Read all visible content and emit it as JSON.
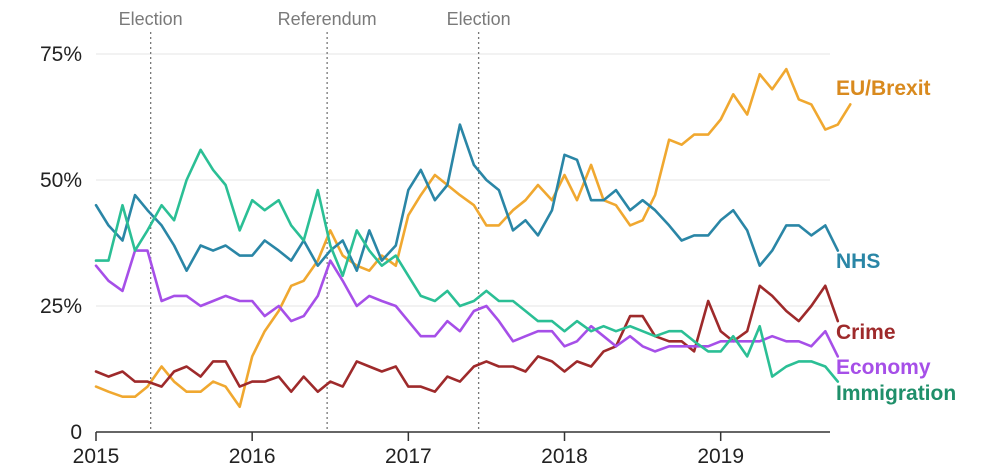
{
  "chart_data": {
    "type": "line",
    "title": "",
    "xlabel": "",
    "ylabel": "",
    "xlim": [
      2015.0,
      2019.7
    ],
    "ylim": [
      0,
      75
    ],
    "grid": true,
    "legend": "inline labels at the right end of each line",
    "y_ticks": [
      {
        "value": 0,
        "label": "0"
      },
      {
        "value": 25,
        "label": "25%"
      },
      {
        "value": 50,
        "label": "50%"
      },
      {
        "value": 75,
        "label": "75%"
      }
    ],
    "x_ticks": [
      {
        "value": 2015,
        "label": "2015"
      },
      {
        "value": 2016,
        "label": "2016"
      },
      {
        "value": 2017,
        "label": "2017"
      },
      {
        "value": 2018,
        "label": "2018"
      },
      {
        "value": 2019,
        "label": "2019"
      }
    ],
    "events": [
      {
        "x": 2015.35,
        "label": "Election"
      },
      {
        "x": 2016.48,
        "label": "Referendum"
      },
      {
        "x": 2017.45,
        "label": "Election"
      }
    ],
    "series": [
      {
        "name": "EU/Brexit",
        "color": "#f0a830",
        "label_color": "#d98a1e",
        "points": [
          [
            2015.0,
            9
          ],
          [
            2015.08,
            8
          ],
          [
            2015.17,
            7
          ],
          [
            2015.25,
            7
          ],
          [
            2015.33,
            9
          ],
          [
            2015.42,
            13
          ],
          [
            2015.5,
            10
          ],
          [
            2015.58,
            8
          ],
          [
            2015.67,
            8
          ],
          [
            2015.75,
            10
          ],
          [
            2015.83,
            9
          ],
          [
            2015.92,
            5
          ],
          [
            2016.0,
            15
          ],
          [
            2016.08,
            20
          ],
          [
            2016.17,
            24
          ],
          [
            2016.25,
            29
          ],
          [
            2016.33,
            30
          ],
          [
            2016.42,
            34
          ],
          [
            2016.5,
            40
          ],
          [
            2016.58,
            35
          ],
          [
            2016.67,
            33
          ],
          [
            2016.75,
            32
          ],
          [
            2016.83,
            35
          ],
          [
            2016.92,
            33
          ],
          [
            2017.0,
            43
          ],
          [
            2017.08,
            47
          ],
          [
            2017.17,
            51
          ],
          [
            2017.25,
            49
          ],
          [
            2017.33,
            47
          ],
          [
            2017.42,
            45
          ],
          [
            2017.5,
            41
          ],
          [
            2017.58,
            41
          ],
          [
            2017.67,
            44
          ],
          [
            2017.75,
            46
          ],
          [
            2017.83,
            49
          ],
          [
            2017.92,
            46
          ],
          [
            2018.0,
            51
          ],
          [
            2018.08,
            46
          ],
          [
            2018.17,
            53
          ],
          [
            2018.25,
            46
          ],
          [
            2018.33,
            45
          ],
          [
            2018.42,
            41
          ],
          [
            2018.5,
            42
          ],
          [
            2018.58,
            47
          ],
          [
            2018.67,
            58
          ],
          [
            2018.75,
            57
          ],
          [
            2018.83,
            59
          ],
          [
            2018.92,
            59
          ],
          [
            2019.0,
            62
          ],
          [
            2019.08,
            67
          ],
          [
            2019.17,
            63
          ],
          [
            2019.25,
            71
          ],
          [
            2019.33,
            68
          ],
          [
            2019.42,
            72
          ],
          [
            2019.5,
            66
          ],
          [
            2019.58,
            65
          ],
          [
            2019.67,
            60
          ],
          [
            2019.75,
            61
          ],
          [
            2019.83,
            65
          ]
        ]
      },
      {
        "name": "NHS",
        "color": "#2a86a6",
        "label_color": "#2a86a6",
        "points": [
          [
            2015.0,
            45
          ],
          [
            2015.08,
            41
          ],
          [
            2015.17,
            38
          ],
          [
            2015.25,
            47
          ],
          [
            2015.33,
            44
          ],
          [
            2015.42,
            41
          ],
          [
            2015.5,
            37
          ],
          [
            2015.58,
            32
          ],
          [
            2015.67,
            37
          ],
          [
            2015.75,
            36
          ],
          [
            2015.83,
            37
          ],
          [
            2015.92,
            35
          ],
          [
            2016.0,
            35
          ],
          [
            2016.08,
            38
          ],
          [
            2016.17,
            36
          ],
          [
            2016.25,
            34
          ],
          [
            2016.33,
            38
          ],
          [
            2016.42,
            33
          ],
          [
            2016.5,
            36
          ],
          [
            2016.58,
            38
          ],
          [
            2016.67,
            32
          ],
          [
            2016.75,
            40
          ],
          [
            2016.83,
            34
          ],
          [
            2016.92,
            37
          ],
          [
            2017.0,
            48
          ],
          [
            2017.08,
            52
          ],
          [
            2017.17,
            46
          ],
          [
            2017.25,
            49
          ],
          [
            2017.33,
            61
          ],
          [
            2017.42,
            53
          ],
          [
            2017.5,
            50
          ],
          [
            2017.58,
            48
          ],
          [
            2017.67,
            40
          ],
          [
            2017.75,
            42
          ],
          [
            2017.83,
            39
          ],
          [
            2017.92,
            44
          ],
          [
            2018.0,
            55
          ],
          [
            2018.08,
            54
          ],
          [
            2018.17,
            46
          ],
          [
            2018.25,
            46
          ],
          [
            2018.33,
            48
          ],
          [
            2018.42,
            44
          ],
          [
            2018.5,
            46
          ],
          [
            2018.58,
            44
          ],
          [
            2018.67,
            41
          ],
          [
            2018.75,
            38
          ],
          [
            2018.83,
            39
          ],
          [
            2018.92,
            39
          ],
          [
            2019.0,
            42
          ],
          [
            2019.08,
            44
          ],
          [
            2019.17,
            40
          ],
          [
            2019.25,
            33
          ],
          [
            2019.33,
            36
          ],
          [
            2019.42,
            41
          ],
          [
            2019.5,
            41
          ],
          [
            2019.58,
            39
          ],
          [
            2019.67,
            41
          ],
          [
            2019.75,
            36
          ]
        ]
      },
      {
        "name": "Crime",
        "color": "#9e2a2b",
        "label_color": "#9e2a2b",
        "points": [
          [
            2015.0,
            12
          ],
          [
            2015.08,
            11
          ],
          [
            2015.17,
            12
          ],
          [
            2015.25,
            10
          ],
          [
            2015.33,
            10
          ],
          [
            2015.42,
            9
          ],
          [
            2015.5,
            12
          ],
          [
            2015.58,
            13
          ],
          [
            2015.67,
            11
          ],
          [
            2015.75,
            14
          ],
          [
            2015.83,
            14
          ],
          [
            2015.92,
            9
          ],
          [
            2016.0,
            10
          ],
          [
            2016.08,
            10
          ],
          [
            2016.17,
            11
          ],
          [
            2016.25,
            8
          ],
          [
            2016.33,
            11
          ],
          [
            2016.42,
            8
          ],
          [
            2016.5,
            10
          ],
          [
            2016.58,
            9
          ],
          [
            2016.67,
            14
          ],
          [
            2016.75,
            13
          ],
          [
            2016.83,
            12
          ],
          [
            2016.92,
            13
          ],
          [
            2017.0,
            9
          ],
          [
            2017.08,
            9
          ],
          [
            2017.17,
            8
          ],
          [
            2017.25,
            11
          ],
          [
            2017.33,
            10
          ],
          [
            2017.42,
            13
          ],
          [
            2017.5,
            14
          ],
          [
            2017.58,
            13
          ],
          [
            2017.67,
            13
          ],
          [
            2017.75,
            12
          ],
          [
            2017.83,
            15
          ],
          [
            2017.92,
            14
          ],
          [
            2018.0,
            12
          ],
          [
            2018.08,
            14
          ],
          [
            2018.17,
            13
          ],
          [
            2018.25,
            16
          ],
          [
            2018.33,
            17
          ],
          [
            2018.42,
            23
          ],
          [
            2018.5,
            23
          ],
          [
            2018.58,
            19
          ],
          [
            2018.67,
            18
          ],
          [
            2018.75,
            18
          ],
          [
            2018.83,
            16
          ],
          [
            2018.92,
            26
          ],
          [
            2019.0,
            20
          ],
          [
            2019.08,
            18
          ],
          [
            2019.17,
            20
          ],
          [
            2019.25,
            29
          ],
          [
            2019.33,
            27
          ],
          [
            2019.42,
            24
          ],
          [
            2019.5,
            22
          ],
          [
            2019.58,
            25
          ],
          [
            2019.67,
            29
          ],
          [
            2019.75,
            22
          ]
        ]
      },
      {
        "name": "Economy",
        "color": "#a64fe8",
        "label_color": "#a64fe8",
        "points": [
          [
            2015.0,
            33
          ],
          [
            2015.08,
            30
          ],
          [
            2015.17,
            28
          ],
          [
            2015.25,
            36
          ],
          [
            2015.33,
            36
          ],
          [
            2015.42,
            26
          ],
          [
            2015.5,
            27
          ],
          [
            2015.58,
            27
          ],
          [
            2015.67,
            25
          ],
          [
            2015.75,
            26
          ],
          [
            2015.83,
            27
          ],
          [
            2015.92,
            26
          ],
          [
            2016.0,
            26
          ],
          [
            2016.08,
            23
          ],
          [
            2016.17,
            25
          ],
          [
            2016.25,
            22
          ],
          [
            2016.33,
            23
          ],
          [
            2016.42,
            27
          ],
          [
            2016.5,
            34
          ],
          [
            2016.58,
            30
          ],
          [
            2016.67,
            25
          ],
          [
            2016.75,
            27
          ],
          [
            2016.83,
            26
          ],
          [
            2016.92,
            25
          ],
          [
            2017.0,
            22
          ],
          [
            2017.08,
            19
          ],
          [
            2017.17,
            19
          ],
          [
            2017.25,
            22
          ],
          [
            2017.33,
            20
          ],
          [
            2017.42,
            24
          ],
          [
            2017.5,
            25
          ],
          [
            2017.58,
            22
          ],
          [
            2017.67,
            18
          ],
          [
            2017.75,
            19
          ],
          [
            2017.83,
            20
          ],
          [
            2017.92,
            20
          ],
          [
            2018.0,
            17
          ],
          [
            2018.08,
            18
          ],
          [
            2018.17,
            21
          ],
          [
            2018.25,
            19
          ],
          [
            2018.33,
            17
          ],
          [
            2018.42,
            19
          ],
          [
            2018.5,
            17
          ],
          [
            2018.58,
            16
          ],
          [
            2018.67,
            17
          ],
          [
            2018.75,
            17
          ],
          [
            2018.83,
            17
          ],
          [
            2018.92,
            17
          ],
          [
            2019.0,
            18
          ],
          [
            2019.08,
            18
          ],
          [
            2019.17,
            18
          ],
          [
            2019.25,
            18
          ],
          [
            2019.33,
            19
          ],
          [
            2019.42,
            18
          ],
          [
            2019.5,
            18
          ],
          [
            2019.58,
            17
          ],
          [
            2019.67,
            20
          ],
          [
            2019.75,
            15
          ]
        ]
      },
      {
        "name": "Immigration",
        "color": "#2bbf95",
        "label_color": "#1f8f6a",
        "points": [
          [
            2015.0,
            34
          ],
          [
            2015.08,
            34
          ],
          [
            2015.17,
            45
          ],
          [
            2015.25,
            36
          ],
          [
            2015.33,
            40
          ],
          [
            2015.42,
            45
          ],
          [
            2015.5,
            42
          ],
          [
            2015.58,
            50
          ],
          [
            2015.67,
            56
          ],
          [
            2015.75,
            52
          ],
          [
            2015.83,
            49
          ],
          [
            2015.92,
            40
          ],
          [
            2016.0,
            46
          ],
          [
            2016.08,
            44
          ],
          [
            2016.17,
            46
          ],
          [
            2016.25,
            41
          ],
          [
            2016.33,
            38
          ],
          [
            2016.42,
            48
          ],
          [
            2016.5,
            37
          ],
          [
            2016.58,
            31
          ],
          [
            2016.67,
            40
          ],
          [
            2016.75,
            36
          ],
          [
            2016.83,
            33
          ],
          [
            2016.92,
            35
          ],
          [
            2017.0,
            31
          ],
          [
            2017.08,
            27
          ],
          [
            2017.17,
            26
          ],
          [
            2017.25,
            28
          ],
          [
            2017.33,
            25
          ],
          [
            2017.42,
            26
          ],
          [
            2017.5,
            28
          ],
          [
            2017.58,
            26
          ],
          [
            2017.67,
            26
          ],
          [
            2017.75,
            24
          ],
          [
            2017.83,
            22
          ],
          [
            2017.92,
            22
          ],
          [
            2018.0,
            20
          ],
          [
            2018.08,
            22
          ],
          [
            2018.17,
            20
          ],
          [
            2018.25,
            21
          ],
          [
            2018.33,
            20
          ],
          [
            2018.42,
            21
          ],
          [
            2018.5,
            20
          ],
          [
            2018.58,
            19
          ],
          [
            2018.67,
            20
          ],
          [
            2018.75,
            20
          ],
          [
            2018.83,
            18
          ],
          [
            2018.92,
            16
          ],
          [
            2019.0,
            16
          ],
          [
            2019.08,
            19
          ],
          [
            2019.17,
            15
          ],
          [
            2019.25,
            21
          ],
          [
            2019.33,
            11
          ],
          [
            2019.42,
            13
          ],
          [
            2019.5,
            14
          ],
          [
            2019.58,
            14
          ],
          [
            2019.67,
            13
          ],
          [
            2019.75,
            10
          ]
        ]
      }
    ]
  }
}
